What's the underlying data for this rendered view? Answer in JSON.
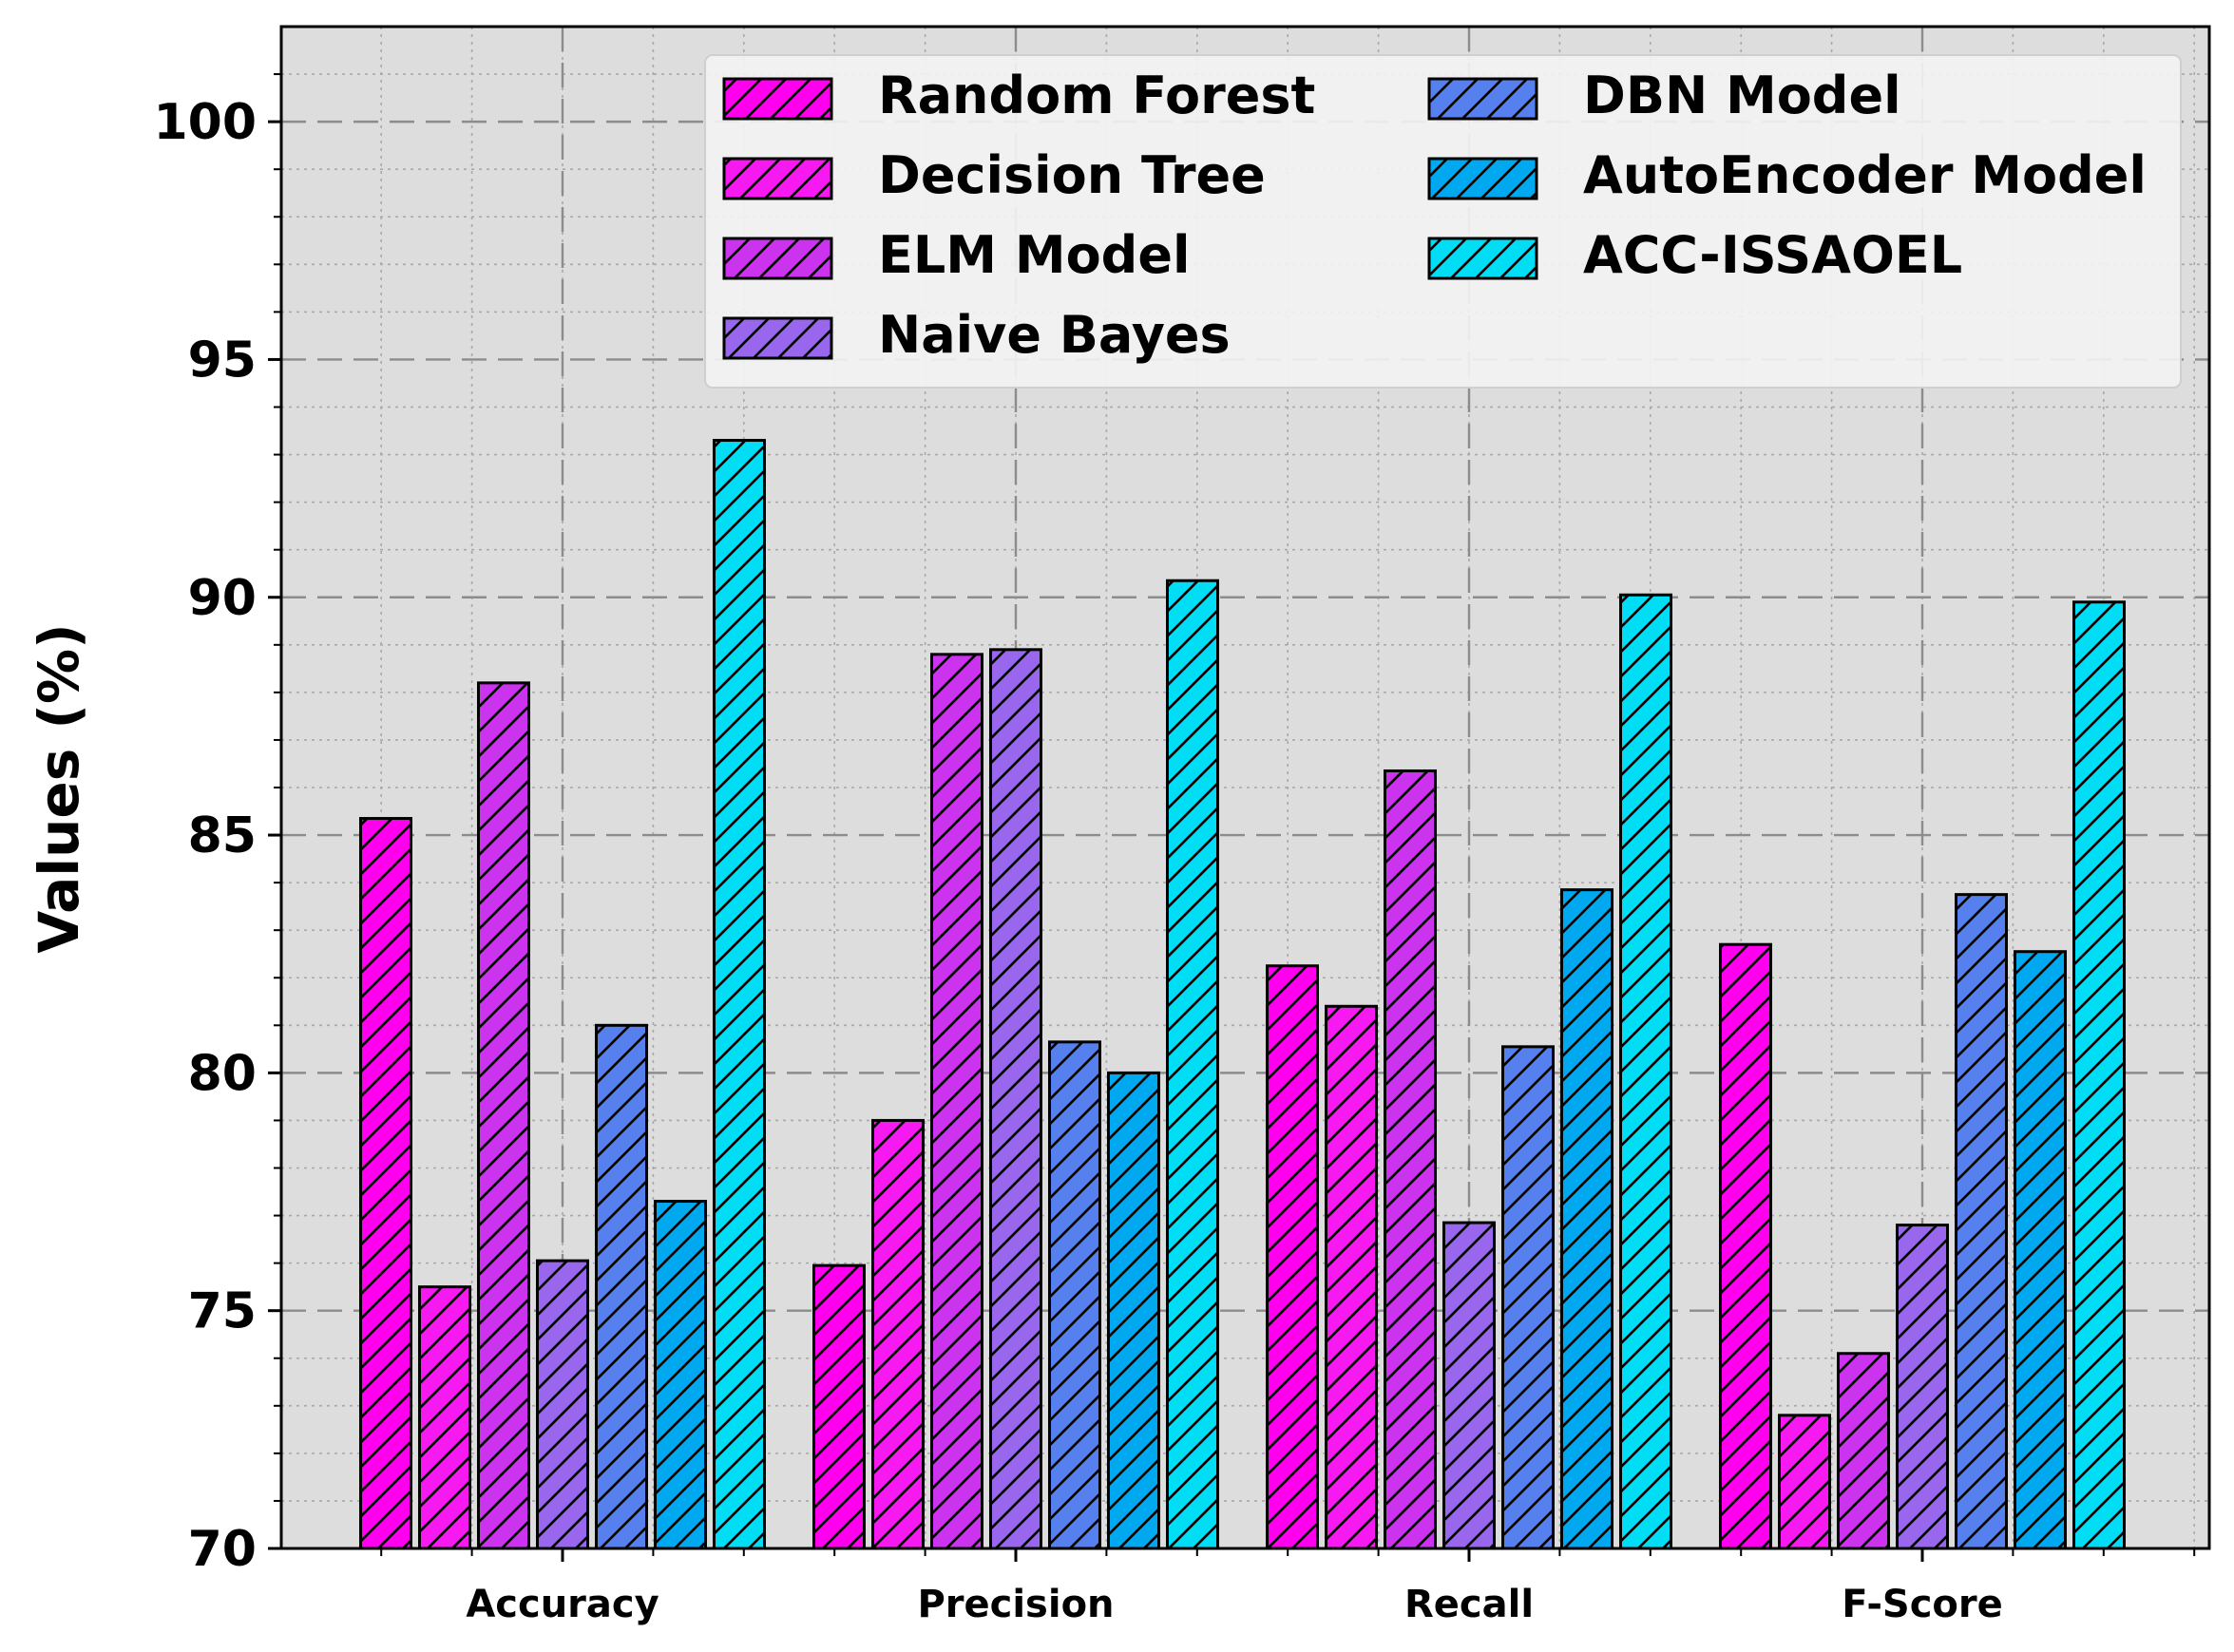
{
  "chart_data": {
    "type": "bar",
    "title": "",
    "xlabel": "",
    "ylabel": "Values (%)",
    "ylim": [
      70,
      102
    ],
    "yticks": [
      70,
      75,
      80,
      85,
      90,
      95,
      100
    ],
    "grid": true,
    "legend_position": "top-right",
    "categories": [
      "Accuracy",
      "Precision",
      "Recall",
      "F-Score"
    ],
    "series": [
      {
        "name": "Random Forest",
        "color": "#ff00ee",
        "values": [
          85.35,
          75.95,
          82.25,
          82.7
        ]
      },
      {
        "name": "Decision Tree",
        "color": "#f619f0",
        "values": [
          75.5,
          79.0,
          81.4,
          72.8
        ]
      },
      {
        "name": "ELM Model",
        "color": "#cc33ee",
        "values": [
          88.2,
          88.8,
          86.35,
          74.1
        ]
      },
      {
        "name": "Naive Bayes",
        "color": "#9966ee",
        "values": [
          76.05,
          88.9,
          76.85,
          76.8
        ]
      },
      {
        "name": "DBN Model",
        "color": "#5580ee",
        "values": [
          81.0,
          80.65,
          80.55,
          83.75
        ]
      },
      {
        "name": "AutoEncoder Model",
        "color": "#00a8f0",
        "values": [
          77.3,
          80.0,
          83.85,
          82.55
        ]
      },
      {
        "name": "ACC-ISSAOEL",
        "color": "#00ddf5",
        "values": [
          93.3,
          90.35,
          90.05,
          89.9
        ]
      }
    ]
  }
}
